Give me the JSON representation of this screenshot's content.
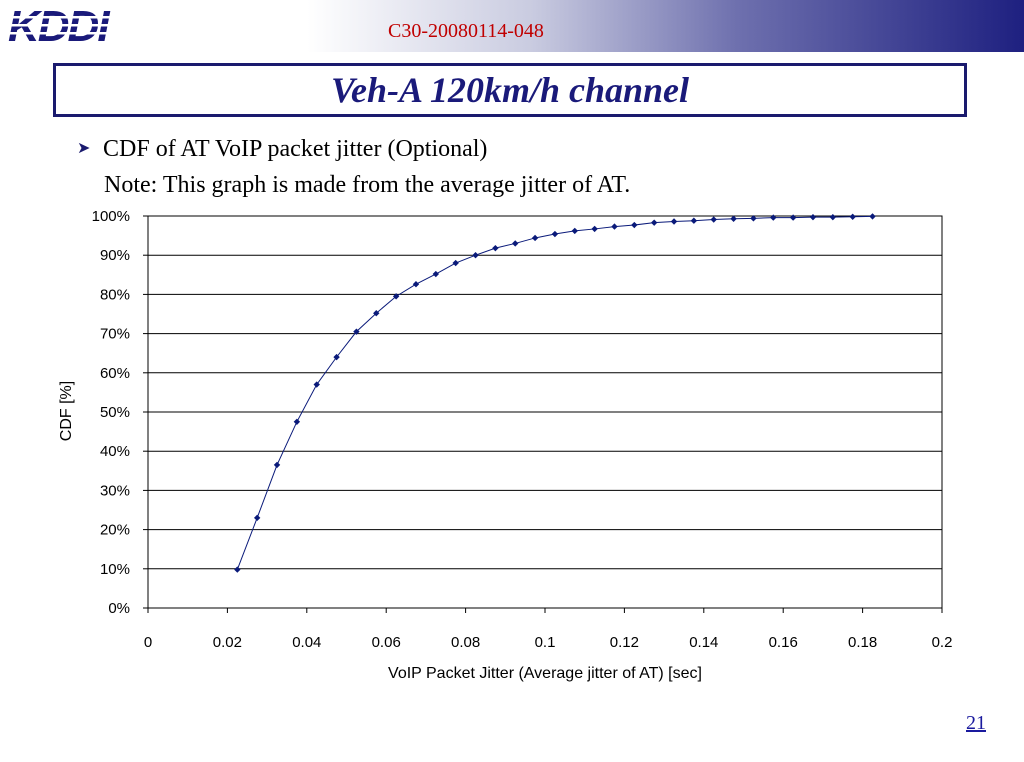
{
  "header": {
    "logo_text": "KDDI",
    "doc_id": "C30-20080114-048"
  },
  "slide": {
    "title": "Veh-A 120km/h channel",
    "bullet": "CDF of AT VoIP packet jitter (Optional)",
    "note": "Note: This graph is made from the average jitter of AT.",
    "page_number": "21"
  },
  "colors": {
    "series": "#0a1a7a",
    "title": "#1a1a7a",
    "doc_id": "#c00000",
    "band_end": "#1e2080"
  },
  "chart_data": {
    "type": "line",
    "title": "",
    "xlabel": "VoIP Packet Jitter (Average jitter of AT) [sec]",
    "ylabel": "CDF [%]",
    "xlim": [
      0,
      0.2
    ],
    "ylim": [
      0,
      100
    ],
    "grid": "horizontal",
    "legend": "none",
    "x_ticks": [
      "0",
      "0.02",
      "0.04",
      "0.06",
      "0.08",
      "0.1",
      "0.12",
      "0.14",
      "0.16",
      "0.18",
      "0.2"
    ],
    "y_ticks": [
      "0%",
      "10%",
      "20%",
      "30%",
      "40%",
      "50%",
      "60%",
      "70%",
      "80%",
      "90%",
      "100%"
    ],
    "series": [
      {
        "x": [
          0.0225,
          0.0275,
          0.0325,
          0.0375,
          0.0425,
          0.0475,
          0.0525,
          0.0575,
          0.0625,
          0.0675,
          0.0725,
          0.0775,
          0.0825,
          0.0875,
          0.0925,
          0.0975,
          0.1025,
          0.1075,
          0.1125,
          0.1175,
          0.1225,
          0.1275,
          0.1325,
          0.1375,
          0.1425,
          0.1475,
          0.1525,
          0.1575,
          0.1625,
          0.1675,
          0.1725,
          0.1775,
          0.1825
        ],
        "y": [
          9.8,
          23.0,
          36.5,
          47.5,
          57.0,
          64.0,
          70.5,
          75.2,
          79.5,
          82.6,
          85.2,
          88.0,
          90.0,
          91.8,
          93.0,
          94.4,
          95.4,
          96.2,
          96.7,
          97.3,
          97.7,
          98.3,
          98.6,
          98.8,
          99.1,
          99.3,
          99.4,
          99.6,
          99.6,
          99.7,
          99.7,
          99.8,
          99.9
        ]
      }
    ]
  }
}
